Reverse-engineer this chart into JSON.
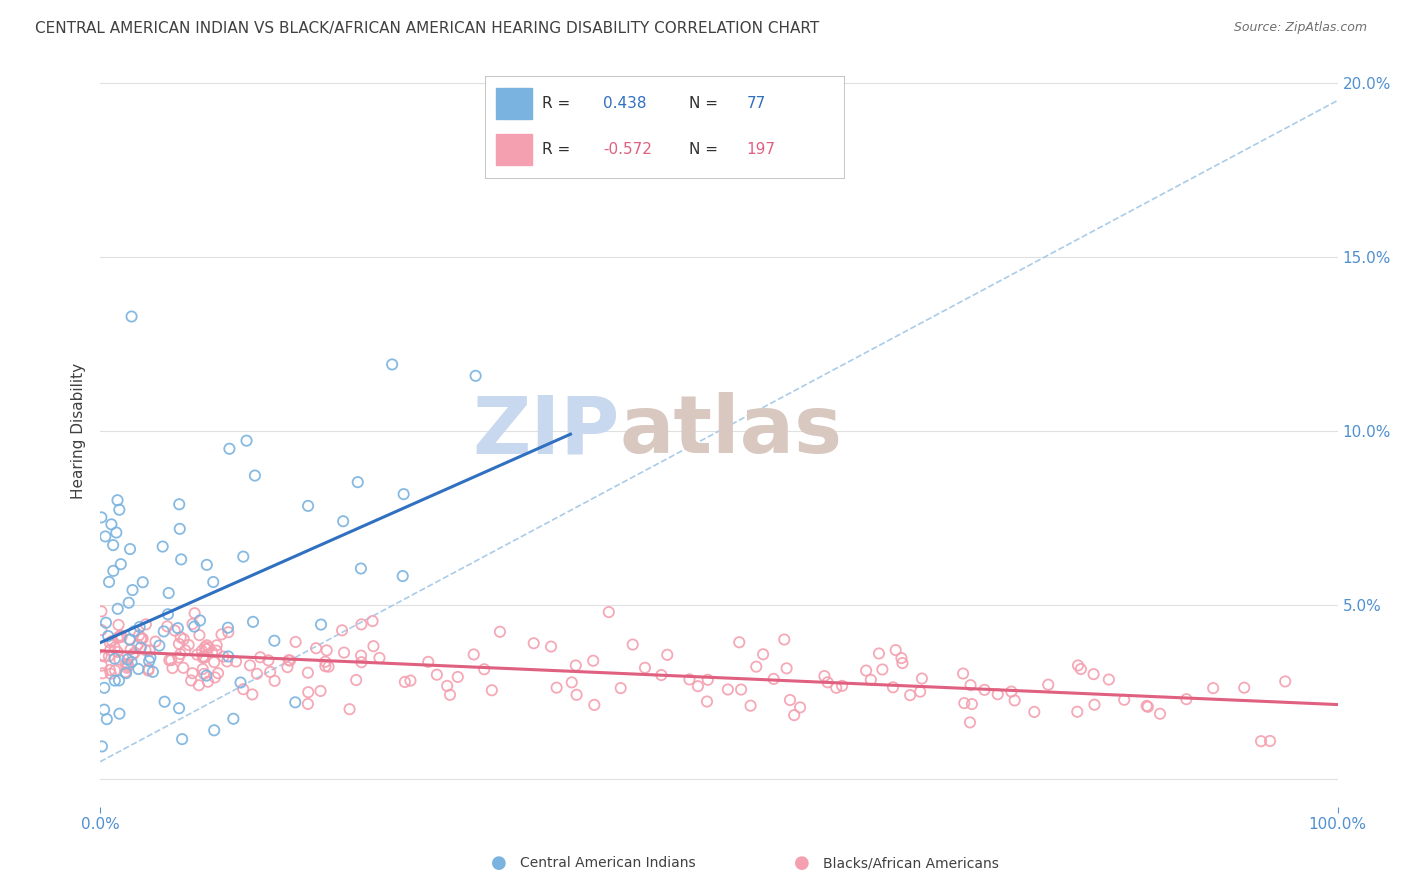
{
  "title": "CENTRAL AMERICAN INDIAN VS BLACK/AFRICAN AMERICAN HEARING DISABILITY CORRELATION CHART",
  "source": "Source: ZipAtlas.com",
  "ylabel": "Hearing Disability",
  "yticks": [
    "",
    "5.0%",
    "10.0%",
    "15.0%",
    "20.0%"
  ],
  "ytick_vals": [
    0.0,
    0.05,
    0.1,
    0.15,
    0.2
  ],
  "xlim": [
    0.0,
    1.0
  ],
  "ylim": [
    -0.008,
    0.208
  ],
  "blue_R": 0.438,
  "blue_N": 77,
  "pink_R": -0.572,
  "pink_N": 197,
  "blue_color": "#7ab3e0",
  "pink_color": "#f4a0b0",
  "blue_line_color": "#3070c0",
  "pink_line_color": "#e06080",
  "dashed_line_color": "#aacce8",
  "watermark_zip_color": "#c8d8ee",
  "watermark_atlas_color": "#d8c8c0",
  "background_color": "#ffffff",
  "grid_color": "#e0e0e0",
  "title_color": "#404040",
  "axis_label_color": "#5090d0",
  "source_color": "#707070"
}
